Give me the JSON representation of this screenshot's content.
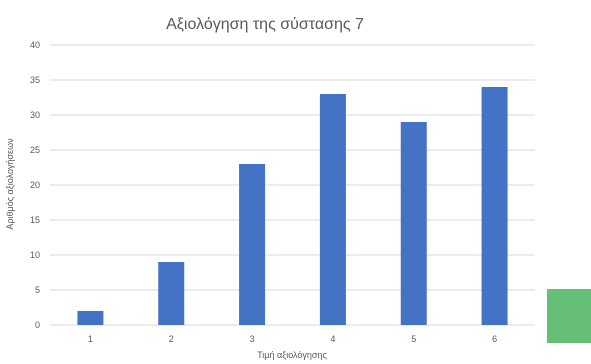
{
  "chart_data": {
    "type": "bar",
    "title": "Αξιολόγηση της σύστασης 7",
    "xlabel": "Τιμή αξιολόγησης",
    "ylabel": "Αριθμός αξιολογήσεων",
    "categories": [
      "1",
      "2",
      "3",
      "4",
      "5",
      "6"
    ],
    "values": [
      2,
      9,
      23,
      33,
      29,
      34
    ],
    "ylim": [
      0,
      40
    ],
    "yticks": [
      0,
      5,
      10,
      15,
      20,
      25,
      30,
      35,
      40
    ],
    "grid": true,
    "legend": "none",
    "bar_color": "#4472C4"
  },
  "decor": {
    "green_swatch_color": "#66BF77"
  }
}
